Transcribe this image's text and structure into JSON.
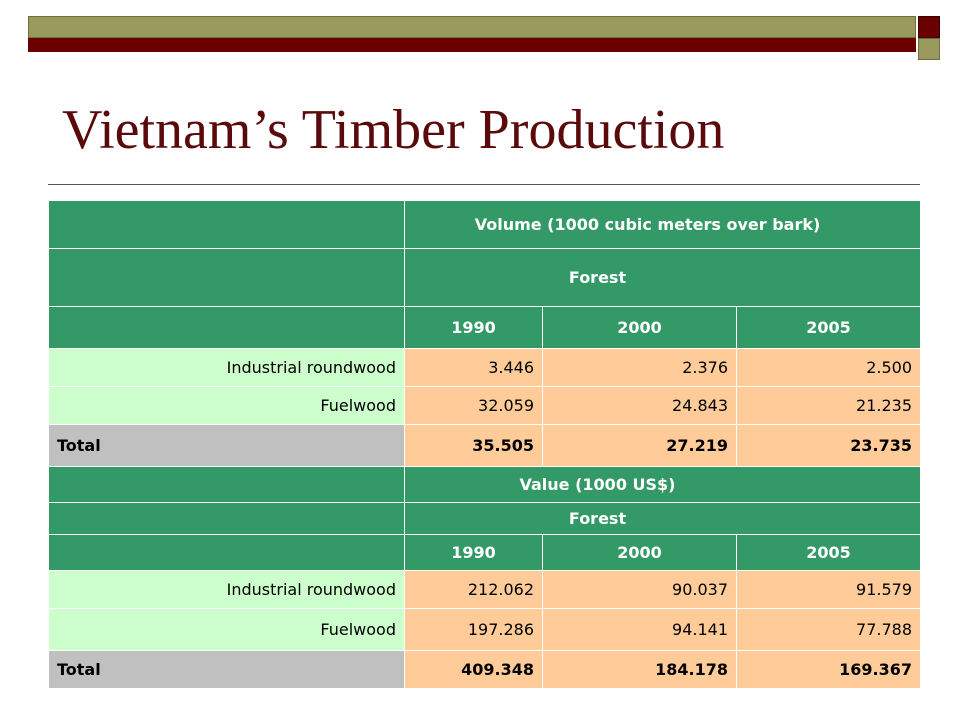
{
  "slide": {
    "title": "Vietnam’s Timber Production"
  },
  "colors": {
    "header_green": "#339966",
    "label_green": "#ccffcc",
    "value_peach": "#ffcc99",
    "total_gray": "#c0c0c0",
    "title_maroon": "#5a0a0a",
    "bar_olive": "#9a9a5e",
    "bar_maroon": "#6b0000"
  },
  "volume": {
    "heading": "Volume (1000 cubic meters over bark)",
    "subheading": "Forest",
    "years": [
      "1990",
      "2000",
      "2005"
    ],
    "rows": [
      {
        "label": "Industrial roundwood",
        "values": [
          "3.446",
          "2.376",
          "2.500"
        ]
      },
      {
        "label": "Fuelwood",
        "values": [
          "32.059",
          "24.843",
          "21.235"
        ]
      }
    ],
    "total": {
      "label": "Total",
      "values": [
        "35.505",
        "27.219",
        "23.735"
      ]
    }
  },
  "value": {
    "heading": "Value (1000 US$)",
    "subheading": "Forest",
    "years": [
      "1990",
      "2000",
      "2005"
    ],
    "rows": [
      {
        "label": "Industrial roundwood",
        "values": [
          "212.062",
          "90.037",
          "91.579"
        ]
      },
      {
        "label": "Fuelwood",
        "values": [
          "197.286",
          "94.141",
          "77.788"
        ]
      }
    ],
    "total": {
      "label": "Total",
      "values": [
        "409.348",
        "184.178",
        "169.367"
      ]
    }
  }
}
